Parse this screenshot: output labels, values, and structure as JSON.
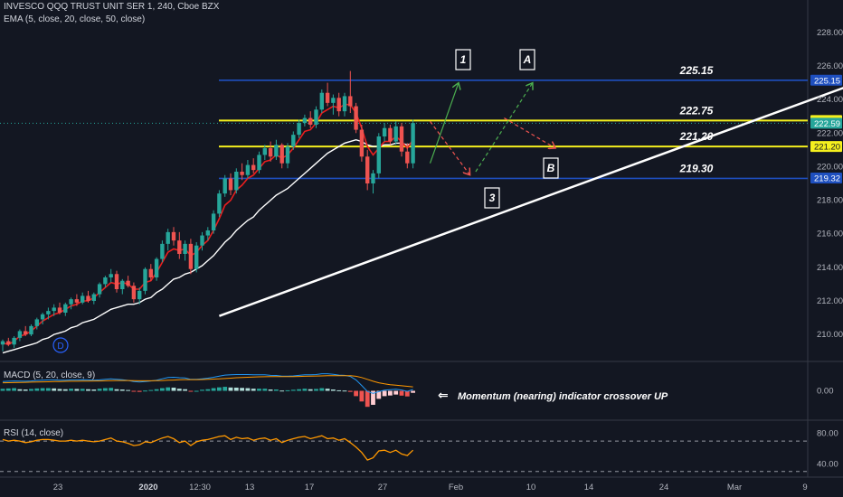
{
  "header": {
    "title": "INVESCO QQQ TRUST UNIT SER 1, 240, Cboe BZX",
    "ema": "EMA (5, close, 20, close, 50, close)",
    "macd": "MACD (5, 20, close, 9)",
    "rsi": "RSI (14, close)"
  },
  "colors": {
    "background": "#131722",
    "bull": "#26a69a",
    "bear": "#ef5350",
    "ema_fast": "#e91e1e",
    "ema_slow": "#ffffff",
    "level_blue": "#1e4fbf",
    "level_yellow": "#f5f01e",
    "trendline": "#ffffff",
    "macd_line": "#2196f3",
    "signal_line": "#ff9800",
    "rsi_line": "#ff9800"
  },
  "annotations": {
    "momentum": "Momentum (nearing) indicator crossover UP",
    "arrow_glyph": "⇐",
    "marker_d": "D",
    "labels": [
      "1",
      "A",
      "B",
      "3"
    ]
  },
  "chart_data": [
    {
      "type": "candlestick",
      "title": "INVESCO QQQ TRUST UNIT SER 1, 240, Cboe BZX",
      "x_tick_labels": [
        "23",
        "2020",
        "12:30",
        "13",
        "17",
        "27",
        "Feb",
        "10",
        "14",
        "24",
        "Mar",
        "9"
      ],
      "y_ticks": [
        210.0,
        212.0,
        214.0,
        216.0,
        218.0,
        220.0,
        222.0,
        224.0,
        226.0,
        228.0
      ],
      "ylim": [
        208.5,
        229.5
      ],
      "price_tags": [
        225.15,
        222.75,
        222.59,
        221.2,
        219.32
      ],
      "levels": [
        {
          "label": "225.15",
          "value": 225.15,
          "color": "blue"
        },
        {
          "label": "222.75",
          "value": 222.75,
          "color": "yellow"
        },
        {
          "label": "221.20",
          "value": 221.2,
          "color": "yellow"
        },
        {
          "label": "219.30",
          "value": 219.3,
          "color": "blue"
        }
      ],
      "candles": [
        [
          209.4,
          209.7,
          209.0,
          209.6
        ],
        [
          209.6,
          209.8,
          209.3,
          209.4
        ],
        [
          209.4,
          209.9,
          209.2,
          209.8
        ],
        [
          209.8,
          210.3,
          209.6,
          210.2
        ],
        [
          210.2,
          210.5,
          209.9,
          210.0
        ],
        [
          210.0,
          210.6,
          209.9,
          210.5
        ],
        [
          210.5,
          211.0,
          210.3,
          210.9
        ],
        [
          210.9,
          211.3,
          210.6,
          211.2
        ],
        [
          211.2,
          211.6,
          210.9,
          211.4
        ],
        [
          211.4,
          211.8,
          211.1,
          211.6
        ],
        [
          211.6,
          211.9,
          211.2,
          211.3
        ],
        [
          211.3,
          211.9,
          211.1,
          211.8
        ],
        [
          211.8,
          212.2,
          211.5,
          212.1
        ],
        [
          212.1,
          212.4,
          211.7,
          211.9
        ],
        [
          211.9,
          212.5,
          211.8,
          212.3
        ],
        [
          212.3,
          212.6,
          211.9,
          212.0
        ],
        [
          212.0,
          212.5,
          211.8,
          212.4
        ],
        [
          212.4,
          213.1,
          212.2,
          213.0
        ],
        [
          213.0,
          213.5,
          212.8,
          213.4
        ],
        [
          213.4,
          213.9,
          213.1,
          213.6
        ],
        [
          213.6,
          213.8,
          212.5,
          212.7
        ],
        [
          212.7,
          213.3,
          212.4,
          213.2
        ],
        [
          213.2,
          213.5,
          212.8,
          212.9
        ],
        [
          212.9,
          213.1,
          211.9,
          212.1
        ],
        [
          212.1,
          212.8,
          211.8,
          212.6
        ],
        [
          212.6,
          214.0,
          212.4,
          213.9
        ],
        [
          213.9,
          214.2,
          213.2,
          213.4
        ],
        [
          213.4,
          214.6,
          213.2,
          214.5
        ],
        [
          214.5,
          215.6,
          214.3,
          215.4
        ],
        [
          215.4,
          216.3,
          215.0,
          216.1
        ],
        [
          216.1,
          216.4,
          215.3,
          215.6
        ],
        [
          215.6,
          216.1,
          214.5,
          214.8
        ],
        [
          214.8,
          215.6,
          214.4,
          215.4
        ],
        [
          215.4,
          215.7,
          213.6,
          213.9
        ],
        [
          213.9,
          215.5,
          213.7,
          215.3
        ],
        [
          215.3,
          216.1,
          215.0,
          215.9
        ],
        [
          215.9,
          216.4,
          215.6,
          216.2
        ],
        [
          216.2,
          217.4,
          216.0,
          217.2
        ],
        [
          217.2,
          218.6,
          217.0,
          218.4
        ],
        [
          218.4,
          219.5,
          218.2,
          219.3
        ],
        [
          219.3,
          219.6,
          218.3,
          218.6
        ],
        [
          218.6,
          219.9,
          218.4,
          219.7
        ],
        [
          219.7,
          220.2,
          219.2,
          219.5
        ],
        [
          219.5,
          220.4,
          219.3,
          220.1
        ],
        [
          220.1,
          220.5,
          219.6,
          219.8
        ],
        [
          219.8,
          220.9,
          219.6,
          220.7
        ],
        [
          220.7,
          221.3,
          220.4,
          221.1
        ],
        [
          221.1,
          221.5,
          220.3,
          220.6
        ],
        [
          220.6,
          221.6,
          220.4,
          221.3
        ],
        [
          221.3,
          221.4,
          219.9,
          220.2
        ],
        [
          220.2,
          221.4,
          219.9,
          221.2
        ],
        [
          221.2,
          222.1,
          221.0,
          221.9
        ],
        [
          221.9,
          222.8,
          221.7,
          222.6
        ],
        [
          222.6,
          223.1,
          222.4,
          222.9
        ],
        [
          222.9,
          223.3,
          222.3,
          222.5
        ],
        [
          222.5,
          223.6,
          222.3,
          223.4
        ],
        [
          223.4,
          224.6,
          223.2,
          224.4
        ],
        [
          224.4,
          225.0,
          223.6,
          223.8
        ],
        [
          223.8,
          224.3,
          223.1,
          224.1
        ],
        [
          224.1,
          224.4,
          223.0,
          223.3
        ],
        [
          223.3,
          224.4,
          223.0,
          224.2
        ],
        [
          224.2,
          225.7,
          223.2,
          223.6
        ],
        [
          223.6,
          223.8,
          222.0,
          222.2
        ],
        [
          222.2,
          222.5,
          220.3,
          220.6
        ],
        [
          220.6,
          221.0,
          218.6,
          219.0
        ],
        [
          219.0,
          219.8,
          218.4,
          219.6
        ],
        [
          219.6,
          222.0,
          219.3,
          221.8
        ],
        [
          221.8,
          222.6,
          221.5,
          222.3
        ],
        [
          222.3,
          222.5,
          221.3,
          221.5
        ],
        [
          221.5,
          222.7,
          221.3,
          222.4
        ],
        [
          222.4,
          222.6,
          220.6,
          220.9
        ],
        [
          220.9,
          221.4,
          219.9,
          220.2
        ],
        [
          220.2,
          222.8,
          219.9,
          222.6
        ]
      ],
      "ema_fast": [
        209.5,
        209.4,
        209.6,
        209.9,
        210.0,
        210.2,
        210.5,
        210.8,
        211.0,
        211.2,
        211.3,
        211.5,
        211.7,
        211.8,
        212.0,
        212.0,
        212.2,
        212.5,
        212.8,
        213.1,
        213.0,
        213.1,
        213.0,
        212.7,
        212.7,
        213.1,
        213.2,
        213.7,
        214.3,
        214.9,
        215.1,
        215.0,
        215.1,
        214.7,
        214.9,
        215.3,
        215.6,
        216.2,
        216.9,
        217.7,
        218.0,
        218.6,
        218.9,
        219.3,
        219.5,
        219.9,
        220.3,
        220.4,
        220.7,
        220.5,
        220.7,
        221.1,
        221.6,
        222.1,
        222.2,
        222.6,
        223.2,
        223.4,
        223.6,
        223.5,
        223.7,
        223.7,
        223.2,
        222.3,
        221.2,
        220.7,
        221.1,
        221.5,
        221.5,
        221.8,
        221.5,
        221.1,
        221.6
      ],
      "ema_slow": [
        208.9,
        209.0,
        209.1,
        209.2,
        209.3,
        209.4,
        209.5,
        209.7,
        209.8,
        210.0,
        210.1,
        210.2,
        210.4,
        210.5,
        210.7,
        210.8,
        210.9,
        211.1,
        211.3,
        211.5,
        211.6,
        211.7,
        211.8,
        211.8,
        211.9,
        212.1,
        212.2,
        212.5,
        212.7,
        213.0,
        213.3,
        213.4,
        213.6,
        213.7,
        213.9,
        214.1,
        214.4,
        214.7,
        215.1,
        215.5,
        215.8,
        216.2,
        216.5,
        216.8,
        217.0,
        217.4,
        217.7,
        218.0,
        218.3,
        218.5,
        218.7,
        219.0,
        219.3,
        219.6,
        219.9,
        220.2,
        220.5,
        220.8,
        221.0,
        221.2,
        221.4,
        221.5,
        221.6,
        221.5,
        221.3,
        221.2,
        221.2,
        221.3,
        221.3,
        221.4,
        221.4,
        221.3,
        221.4
      ],
      "trendline": [
        {
          "x_index": 38,
          "y": 211.1
        },
        {
          "x_index": 150,
          "y": 225.0
        }
      ],
      "projections": [
        {
          "label": "1",
          "from": [
            75,
            220.2
          ],
          "to": [
            80,
            225.0
          ],
          "color": "green",
          "dashed": false
        },
        {
          "label": "3",
          "from": [
            75,
            222.7
          ],
          "to": [
            82,
            219.5
          ],
          "color": "red",
          "dashed": true
        },
        {
          "label": "A",
          "from": [
            83,
            219.7
          ],
          "to": [
            93,
            225.0
          ],
          "color": "green",
          "dashed": true
        },
        {
          "label": "B",
          "from": [
            88,
            222.9
          ],
          "to": [
            97,
            221.1
          ],
          "color": "red",
          "dashed": true
        }
      ]
    },
    {
      "type": "histogram",
      "title": "MACD (5, 20, close, 9)",
      "y_ticks": [
        0.0
      ],
      "ylim": [
        -2.0,
        2.0
      ],
      "histogram": [
        0.15,
        0.18,
        0.2,
        0.12,
        0.1,
        0.14,
        0.18,
        0.2,
        0.2,
        0.18,
        0.14,
        0.12,
        0.16,
        0.14,
        0.15,
        0.12,
        0.1,
        0.16,
        0.2,
        0.22,
        0.12,
        0.1,
        0.06,
        -0.05,
        -0.08,
        0.02,
        0.06,
        0.12,
        0.2,
        0.26,
        0.24,
        0.16,
        0.12,
        -0.04,
        0.0,
        0.08,
        0.12,
        0.2,
        0.26,
        0.3,
        0.25,
        0.24,
        0.22,
        0.2,
        0.16,
        0.16,
        0.16,
        0.1,
        0.1,
        0.02,
        0.04,
        0.08,
        0.12,
        0.16,
        0.12,
        0.14,
        0.2,
        0.16,
        0.1,
        0.04,
        0.02,
        -0.08,
        -0.4,
        -0.8,
        -1.2,
        -1.05,
        -0.6,
        -0.4,
        -0.35,
        -0.28,
        -0.36,
        -0.42,
        -0.15
      ],
      "macd": [
        0.7,
        0.72,
        0.74,
        0.73,
        0.72,
        0.74,
        0.78,
        0.8,
        0.82,
        0.82,
        0.8,
        0.8,
        0.82,
        0.82,
        0.83,
        0.82,
        0.8,
        0.82,
        0.86,
        0.9,
        0.86,
        0.83,
        0.78,
        0.7,
        0.66,
        0.7,
        0.74,
        0.8,
        0.9,
        1.0,
        1.02,
        0.98,
        0.96,
        0.86,
        0.86,
        0.9,
        0.95,
        1.02,
        1.1,
        1.18,
        1.2,
        1.22,
        1.22,
        1.22,
        1.2,
        1.2,
        1.2,
        1.16,
        1.15,
        1.1,
        1.1,
        1.12,
        1.16,
        1.2,
        1.2,
        1.22,
        1.28,
        1.28,
        1.24,
        1.18,
        1.16,
        1.08,
        0.82,
        0.4,
        -0.05,
        -0.2,
        -0.06,
        0.05,
        0.08,
        0.12,
        0.06,
        -0.04,
        0.1
      ],
      "signal": [
        0.6,
        0.61,
        0.62,
        0.63,
        0.64,
        0.65,
        0.66,
        0.67,
        0.68,
        0.69,
        0.7,
        0.71,
        0.72,
        0.72,
        0.73,
        0.73,
        0.74,
        0.74,
        0.75,
        0.76,
        0.77,
        0.77,
        0.77,
        0.76,
        0.75,
        0.75,
        0.75,
        0.76,
        0.77,
        0.79,
        0.81,
        0.83,
        0.84,
        0.84,
        0.84,
        0.85,
        0.86,
        0.88,
        0.9,
        0.92,
        0.95,
        0.98,
        1.0,
        1.02,
        1.04,
        1.05,
        1.06,
        1.07,
        1.07,
        1.07,
        1.07,
        1.07,
        1.08,
        1.09,
        1.1,
        1.11,
        1.12,
        1.13,
        1.14,
        1.14,
        1.14,
        1.13,
        1.09,
        1.0,
        0.86,
        0.72,
        0.6,
        0.52,
        0.46,
        0.42,
        0.38,
        0.34,
        0.3
      ]
    },
    {
      "type": "line",
      "title": "RSI (14, close)",
      "y_ticks": [
        40.0,
        80.0
      ],
      "ylim": [
        25,
        95
      ],
      "bands": [
        70,
        30
      ],
      "values": [
        72,
        70,
        71,
        70,
        68,
        69,
        71,
        72,
        72,
        71,
        70,
        70,
        71,
        70,
        71,
        70,
        69,
        70,
        72,
        74,
        70,
        69,
        67,
        64,
        65,
        69,
        68,
        71,
        74,
        76,
        73,
        68,
        70,
        64,
        69,
        71,
        72,
        74,
        76,
        77,
        72,
        75,
        73,
        74,
        71,
        73,
        74,
        71,
        73,
        68,
        71,
        73,
        75,
        76,
        73,
        75,
        77,
        73,
        74,
        71,
        73,
        68,
        62,
        55,
        45,
        48,
        57,
        58,
        55,
        58,
        53,
        51,
        58
      ]
    }
  ]
}
